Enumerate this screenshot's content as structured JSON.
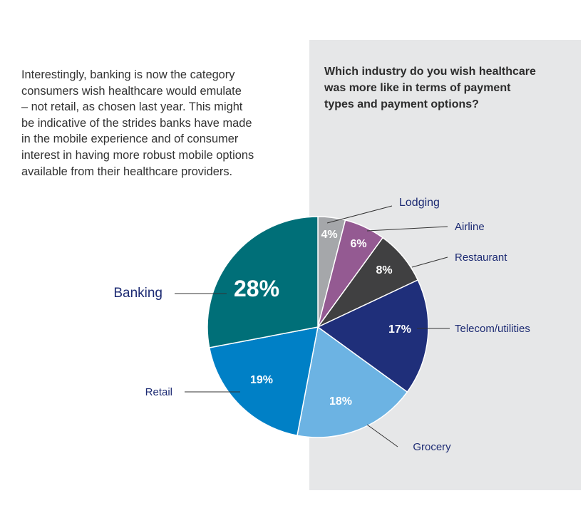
{
  "intro_text": "Interestingly, banking is now the category\nconsumers wish healthcare would emulate\n– not retail, as chosen last year. This might\nbe indicative of the strides banks have made\nin the mobile experience and of consumer\ninterest in having more robust mobile options\navailable from their healthcare providers.",
  "question": "Which industry do you wish healthcare\nwas more like in terms of payment\ntypes and payment options?",
  "chart_data": {
    "type": "pie",
    "title": "",
    "start": "12 o'clock, clockwise",
    "slices": [
      {
        "label": "Lodging",
        "value": 4,
        "display": "4%",
        "color": "#a5a7aa",
        "text_color": "#ffffff"
      },
      {
        "label": "Airline",
        "value": 6,
        "display": "6%",
        "color": "#945a92",
        "text_color": "#ffffff"
      },
      {
        "label": "Restaurant",
        "value": 8,
        "display": "8%",
        "color": "#404041",
        "text_color": "#ffffff"
      },
      {
        "label": "Telecom/utilities",
        "value": 17,
        "display": "17%",
        "color": "#1f2f7a",
        "text_color": "#ffffff"
      },
      {
        "label": "Grocery",
        "value": 18,
        "display": "18%",
        "color": "#6cb3e3",
        "text_color": "#ffffff"
      },
      {
        "label": "Retail",
        "value": 19,
        "display": "19%",
        "color": "#0080c6",
        "text_color": "#ffffff"
      },
      {
        "label": "Banking",
        "value": 28,
        "display": "28%",
        "color": "#006f78",
        "text_color": "#ffffff"
      }
    ],
    "category_label_color": "#1d2b73"
  }
}
